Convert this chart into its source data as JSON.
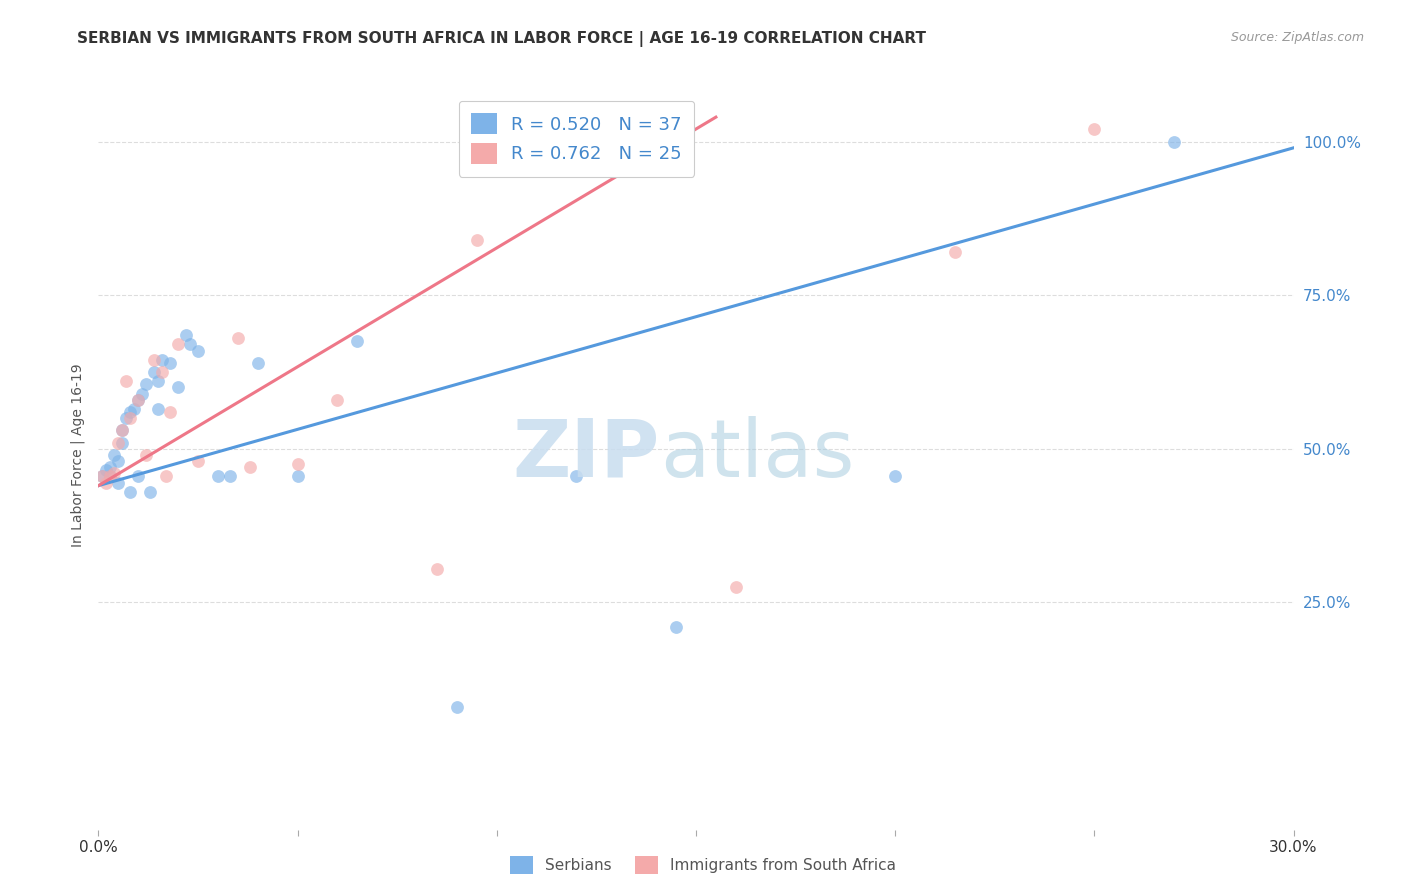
{
  "title": "SERBIAN VS IMMIGRANTS FROM SOUTH AFRICA IN LABOR FORCE | AGE 16-19 CORRELATION CHART",
  "source": "Source: ZipAtlas.com",
  "ylabel": "In Labor Force | Age 16-19",
  "xlim": [
    0.0,
    0.3
  ],
  "ylim": [
    -0.12,
    1.1
  ],
  "x_ticks": [
    0.0,
    0.05,
    0.1,
    0.15,
    0.2,
    0.25,
    0.3
  ],
  "y_ticks_right": [
    0.25,
    0.5,
    0.75,
    1.0
  ],
  "y_tick_labels_right": [
    "25.0%",
    "50.0%",
    "75.0%",
    "100.0%"
  ],
  "blue_color": "#7EB3E8",
  "pink_color": "#F4AAAA",
  "blue_line_color": "#5599DD",
  "pink_line_color": "#EE7788",
  "legend_text_color": "#4488CC",
  "blue_R": 0.52,
  "blue_N": 37,
  "pink_R": 0.762,
  "pink_N": 25,
  "blue_scatter_x": [
    0.001,
    0.002,
    0.003,
    0.003,
    0.004,
    0.005,
    0.005,
    0.006,
    0.006,
    0.007,
    0.008,
    0.008,
    0.009,
    0.01,
    0.01,
    0.011,
    0.012,
    0.013,
    0.014,
    0.015,
    0.015,
    0.016,
    0.018,
    0.02,
    0.022,
    0.023,
    0.025,
    0.03,
    0.033,
    0.04,
    0.05,
    0.065,
    0.12,
    0.145,
    0.2,
    0.27,
    0.09
  ],
  "blue_scatter_y": [
    0.455,
    0.465,
    0.455,
    0.47,
    0.49,
    0.445,
    0.48,
    0.51,
    0.53,
    0.55,
    0.43,
    0.56,
    0.565,
    0.58,
    0.455,
    0.59,
    0.605,
    0.43,
    0.625,
    0.565,
    0.61,
    0.645,
    0.64,
    0.6,
    0.685,
    0.67,
    0.66,
    0.455,
    0.455,
    0.64,
    0.455,
    0.675,
    0.455,
    0.21,
    0.455,
    1.0,
    0.08
  ],
  "pink_scatter_x": [
    0.001,
    0.002,
    0.003,
    0.004,
    0.005,
    0.006,
    0.007,
    0.008,
    0.01,
    0.012,
    0.014,
    0.016,
    0.017,
    0.018,
    0.025,
    0.035,
    0.038,
    0.05,
    0.06,
    0.085,
    0.095,
    0.16,
    0.215,
    0.25,
    0.02
  ],
  "pink_scatter_y": [
    0.455,
    0.445,
    0.455,
    0.46,
    0.51,
    0.53,
    0.61,
    0.55,
    0.58,
    0.49,
    0.645,
    0.625,
    0.455,
    0.56,
    0.48,
    0.68,
    0.47,
    0.475,
    0.58,
    0.305,
    0.84,
    0.275,
    0.82,
    1.02,
    0.67
  ],
  "blue_line_x": [
    0.0,
    0.3
  ],
  "blue_line_y": [
    0.44,
    0.99
  ],
  "pink_line_x": [
    0.0,
    0.155
  ],
  "pink_line_y": [
    0.44,
    1.04
  ],
  "grid_color": "#DDDDDD",
  "background_color": "#FFFFFF",
  "title_fontsize": 11
}
